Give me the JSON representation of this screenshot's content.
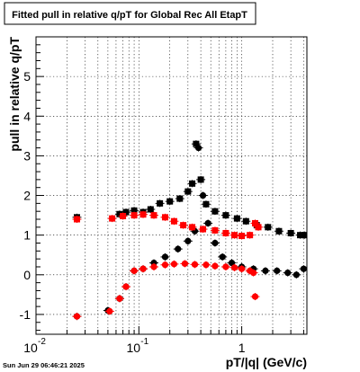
{
  "chart_data": {
    "type": "scatter",
    "title": "Fitted pull in relative q/pT for Global Rec All EtapT",
    "xlabel": "pT/|q| (GeV/c)",
    "ylabel": "pull in relative q/pT",
    "x_scale": "log",
    "xlim": [
      0.01,
      4.3
    ],
    "ylim": [
      -1.5,
      6
    ],
    "x_major_ticks": [
      {
        "value": 0.01,
        "label": "10",
        "exponent": "-2"
      },
      {
        "value": 0.1,
        "label": "10",
        "exponent": "-1"
      },
      {
        "value": 1,
        "label": "1",
        "exponent": ""
      }
    ],
    "y_ticks": [
      -1,
      0,
      1,
      2,
      3,
      4,
      5
    ],
    "grid": true,
    "footer": "Sun Jun 29 06:46:21 2025",
    "colors": {
      "black_series": "#000000",
      "red_series": "#ff0000"
    },
    "series": [
      {
        "color": "#000000",
        "marker": "square",
        "points": [
          [
            0.025,
            1.45
          ],
          [
            0.065,
            1.53
          ],
          [
            0.075,
            1.58
          ],
          [
            0.09,
            1.62
          ],
          [
            0.11,
            1.58
          ],
          [
            0.13,
            1.65
          ],
          [
            0.16,
            1.8
          ],
          [
            0.2,
            1.85
          ],
          [
            0.25,
            1.92
          ],
          [
            0.3,
            2.1
          ],
          [
            0.33,
            2.3
          ],
          [
            0.36,
            3.3
          ],
          [
            0.4,
            2.4
          ],
          [
            0.45,
            1.78
          ],
          [
            0.55,
            1.6
          ],
          [
            0.7,
            1.5
          ],
          [
            0.9,
            1.42
          ],
          [
            1.1,
            1.35
          ],
          [
            1.4,
            1.25
          ],
          [
            1.8,
            1.2
          ],
          [
            2.3,
            1.1
          ],
          [
            3.0,
            1.05
          ],
          [
            3.7,
            1.0
          ],
          [
            4.1,
            1.0
          ]
        ]
      },
      {
        "color": "#000000",
        "marker": "circle",
        "points": [
          [
            0.025,
            -1.05
          ],
          [
            0.05,
            -0.9
          ],
          [
            0.065,
            -0.6
          ],
          [
            0.075,
            -0.3
          ],
          [
            0.09,
            0.1
          ],
          [
            0.11,
            0.15
          ],
          [
            0.14,
            0.3
          ],
          [
            0.18,
            0.45
          ],
          [
            0.24,
            0.65
          ],
          [
            0.3,
            0.85
          ],
          [
            0.35,
            1.1
          ],
          [
            0.38,
            3.2
          ],
          [
            0.42,
            2.0
          ],
          [
            0.47,
            1.3
          ],
          [
            0.55,
            0.8
          ],
          [
            0.65,
            0.45
          ],
          [
            0.8,
            0.3
          ],
          [
            1.0,
            0.2
          ],
          [
            1.3,
            0.15
          ],
          [
            1.7,
            0.1
          ],
          [
            2.2,
            0.1
          ],
          [
            2.8,
            0.05
          ],
          [
            3.4,
            0.0
          ],
          [
            4.0,
            0.15
          ]
        ]
      },
      {
        "color": "#ff0000",
        "marker": "square",
        "points": [
          [
            0.025,
            1.4
          ],
          [
            0.055,
            1.42
          ],
          [
            0.07,
            1.48
          ],
          [
            0.09,
            1.5
          ],
          [
            0.11,
            1.52
          ],
          [
            0.14,
            1.5
          ],
          [
            0.18,
            1.45
          ],
          [
            0.22,
            1.35
          ],
          [
            0.27,
            1.25
          ],
          [
            0.33,
            1.2
          ],
          [
            0.42,
            1.15
          ],
          [
            0.55,
            1.12
          ],
          [
            0.7,
            1.05
          ],
          [
            0.85,
            1.0
          ],
          [
            1.0,
            0.98
          ],
          [
            1.2,
            1.0
          ],
          [
            1.35,
            1.3
          ],
          [
            1.45,
            1.2
          ]
        ]
      },
      {
        "color": "#ff0000",
        "marker": "circle",
        "points": [
          [
            0.025,
            -1.05
          ],
          [
            0.052,
            -0.92
          ],
          [
            0.065,
            -0.6
          ],
          [
            0.075,
            -0.3
          ],
          [
            0.09,
            0.1
          ],
          [
            0.11,
            0.15
          ],
          [
            0.14,
            0.2
          ],
          [
            0.18,
            0.25
          ],
          [
            0.22,
            0.27
          ],
          [
            0.28,
            0.28
          ],
          [
            0.35,
            0.26
          ],
          [
            0.45,
            0.25
          ],
          [
            0.55,
            0.22
          ],
          [
            0.7,
            0.2
          ],
          [
            0.85,
            0.18
          ],
          [
            1.0,
            0.15
          ],
          [
            1.2,
            0.1
          ],
          [
            1.3,
            0.05
          ],
          [
            1.35,
            -0.55
          ]
        ]
      }
    ]
  }
}
